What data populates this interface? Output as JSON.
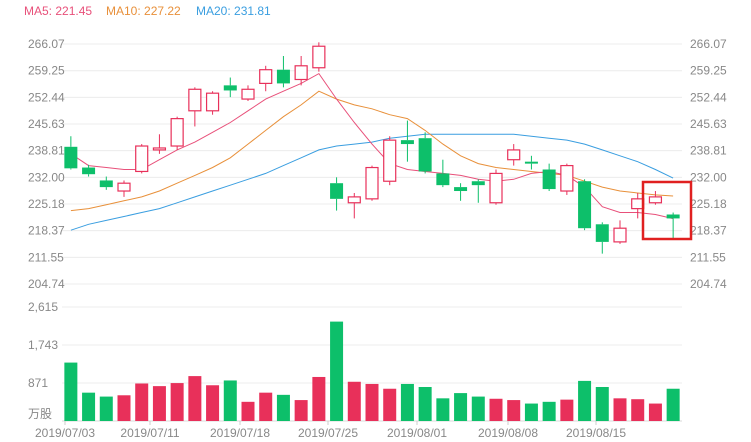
{
  "legend": {
    "ma5": {
      "text": "MA5: 221.45",
      "color": "#e8507a"
    },
    "ma10": {
      "text": "MA10: 227.22",
      "color": "#e8903a"
    },
    "ma20": {
      "text": "MA20: 231.81",
      "color": "#3a9ee0"
    }
  },
  "colors": {
    "up": "#e8305a",
    "down": "#0dbf6a",
    "grid": "#ececec",
    "axis_text": "#888888",
    "highlight": "#e02020"
  },
  "chart_data": {
    "type": "candlestick",
    "price_ylim": [
      204.74,
      266.07
    ],
    "price_ticks": [
      "266.07",
      "259.25",
      "252.44",
      "245.63",
      "238.81",
      "232.00",
      "225.18",
      "218.37",
      "211.55",
      "204.74"
    ],
    "volume_ylim": [
      0,
      2615
    ],
    "volume_ticks": [
      "2,615",
      "1,743",
      "871"
    ],
    "volume_unit": "万股",
    "x_labels": [
      "2019/07/03",
      "2019/07/11",
      "2019/07/18",
      "2019/07/25",
      "2019/08/01",
      "2019/08/08",
      "2019/08/15"
    ],
    "x_label_index": [
      0,
      4,
      8,
      12,
      16,
      20,
      24
    ],
    "candles": [
      {
        "o": 239.8,
        "c": 234.3,
        "h": 242.5,
        "l": 234.0,
        "v": 1340
      },
      {
        "o": 234.5,
        "c": 232.8,
        "h": 235.2,
        "l": 232.2,
        "v": 650
      },
      {
        "o": 231.2,
        "c": 229.5,
        "h": 232.2,
        "l": 228.8,
        "v": 560
      },
      {
        "o": 228.5,
        "c": 230.5,
        "h": 231.2,
        "l": 227.0,
        "v": 590
      },
      {
        "o": 233.5,
        "c": 240.0,
        "h": 240.5,
        "l": 233.0,
        "v": 860
      },
      {
        "o": 239.0,
        "c": 239.5,
        "h": 243.0,
        "l": 238.0,
        "v": 800
      },
      {
        "o": 240.0,
        "c": 247.0,
        "h": 247.5,
        "l": 239.0,
        "v": 870
      },
      {
        "o": 249.0,
        "c": 254.5,
        "h": 255.0,
        "l": 245.0,
        "v": 1030
      },
      {
        "o": 249.0,
        "c": 253.5,
        "h": 254.0,
        "l": 248.0,
        "v": 820
      },
      {
        "o": 255.5,
        "c": 254.2,
        "h": 257.5,
        "l": 252.5,
        "v": 930
      },
      {
        "o": 252.0,
        "c": 254.5,
        "h": 255.5,
        "l": 251.5,
        "v": 440
      },
      {
        "o": 256.0,
        "c": 259.5,
        "h": 260.5,
        "l": 254.0,
        "v": 650
      },
      {
        "o": 259.5,
        "c": 256.0,
        "h": 263.0,
        "l": 255.0,
        "v": 600
      },
      {
        "o": 257.0,
        "c": 260.5,
        "h": 263.0,
        "l": 255.5,
        "v": 480
      },
      {
        "o": 260.0,
        "c": 265.5,
        "h": 266.5,
        "l": 259.0,
        "v": 1010
      },
      {
        "o": 230.5,
        "c": 226.5,
        "h": 232.0,
        "l": 223.5,
        "v": 2280
      },
      {
        "o": 225.5,
        "c": 227.0,
        "h": 228.0,
        "l": 221.5,
        "v": 900
      },
      {
        "o": 226.5,
        "c": 234.5,
        "h": 235.0,
        "l": 226.0,
        "v": 850
      },
      {
        "o": 231.0,
        "c": 241.5,
        "h": 242.5,
        "l": 230.0,
        "v": 740
      },
      {
        "o": 241.5,
        "c": 240.5,
        "h": 246.5,
        "l": 236.0,
        "v": 850
      },
      {
        "o": 242.0,
        "c": 233.5,
        "h": 243.5,
        "l": 233.0,
        "v": 780
      },
      {
        "o": 233.0,
        "c": 230.0,
        "h": 236.5,
        "l": 229.5,
        "v": 520
      },
      {
        "o": 229.5,
        "c": 228.5,
        "h": 230.5,
        "l": 226.0,
        "v": 640
      },
      {
        "o": 231.0,
        "c": 230.0,
        "h": 231.5,
        "l": 225.5,
        "v": 560
      },
      {
        "o": 225.5,
        "c": 233.0,
        "h": 234.0,
        "l": 225.0,
        "v": 510
      },
      {
        "o": 236.5,
        "c": 239.0,
        "h": 240.5,
        "l": 235.0,
        "v": 480
      },
      {
        "o": 236.0,
        "c": 235.5,
        "h": 237.5,
        "l": 234.0,
        "v": 400
      },
      {
        "o": 234.0,
        "c": 229.0,
        "h": 235.5,
        "l": 228.5,
        "v": 440
      },
      {
        "o": 228.5,
        "c": 235.0,
        "h": 235.5,
        "l": 227.5,
        "v": 490
      },
      {
        "o": 231.0,
        "c": 219.0,
        "h": 231.5,
        "l": 218.5,
        "v": 920
      },
      {
        "o": 220.0,
        "c": 215.5,
        "h": 220.5,
        "l": 212.5,
        "v": 780
      },
      {
        "o": 215.5,
        "c": 219.0,
        "h": 221.0,
        "l": 215.0,
        "v": 520
      },
      {
        "o": 224.0,
        "c": 226.5,
        "h": 228.0,
        "l": 221.5,
        "v": 500
      },
      {
        "o": 225.5,
        "c": 227.0,
        "h": 228.5,
        "l": 225.0,
        "v": 400
      },
      {
        "o": 222.5,
        "c": 221.5,
        "h": 223.0,
        "l": 216.5,
        "v": 740
      }
    ],
    "ma5": [
      238.0,
      235.0,
      234.5,
      234.0,
      234.0,
      236.5,
      239.0,
      241.0,
      243.5,
      246.0,
      249.0,
      252.0,
      254.0,
      256.0,
      258.5,
      252.0,
      246.0,
      240.5,
      235.5,
      234.0,
      233.5,
      233.0,
      232.5,
      231.5,
      231.0,
      231.5,
      233.0,
      233.5,
      232.5,
      229.5,
      224.5,
      223.0,
      223.0,
      222.5,
      221.45
    ],
    "ma10": [
      223.5,
      224.0,
      225.0,
      226.0,
      227.0,
      228.5,
      230.5,
      232.5,
      234.5,
      237.0,
      240.5,
      244.0,
      247.5,
      250.5,
      254.0,
      252.0,
      250.5,
      249.5,
      248.0,
      247.0,
      244.0,
      240.5,
      237.5,
      235.5,
      234.5,
      234.0,
      233.5,
      233.0,
      232.5,
      231.0,
      229.5,
      228.5,
      228.0,
      227.5,
      227.22
    ],
    "ma20": [
      218.5,
      220.0,
      221.0,
      222.0,
      223.0,
      224.0,
      225.5,
      227.0,
      228.5,
      230.0,
      231.5,
      233.0,
      235.0,
      237.0,
      239.0,
      240.0,
      240.5,
      241.0,
      242.0,
      242.5,
      243.0,
      243.0,
      243.0,
      243.0,
      243.0,
      243.0,
      242.5,
      242.0,
      241.5,
      240.5,
      239.0,
      237.5,
      236.0,
      234.0,
      231.81
    ]
  }
}
